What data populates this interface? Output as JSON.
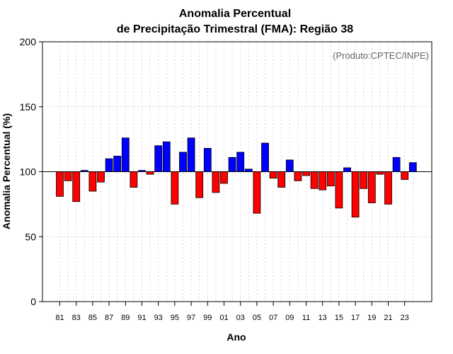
{
  "chart_data": {
    "type": "bar",
    "title_line1": "Anomalia Percentual",
    "title_line2": "de Precipitação Trimestral (FMA): Região 38",
    "xlabel": "Ano",
    "ylabel": "Anomalia Percentual (%)",
    "credit": "(Produto:CPTEC/INPE)",
    "ylim": [
      0,
      200
    ],
    "yticks": [
      0,
      50,
      100,
      150,
      200
    ],
    "baseline": 100,
    "grid": true,
    "colors": {
      "above": "#0000ff",
      "below": "#ff0000",
      "edge": "#000000",
      "grid": "#cccccc"
    },
    "categories": [
      "81",
      "82",
      "83",
      "84",
      "85",
      "86",
      "87",
      "88",
      "89",
      "90",
      "91",
      "92",
      "93",
      "94",
      "95",
      "96",
      "97",
      "98",
      "99",
      "00",
      "01",
      "02",
      "03",
      "04",
      "05",
      "06",
      "07",
      "08",
      "09",
      "10",
      "11",
      "12",
      "13",
      "14",
      "15",
      "16",
      "17",
      "18",
      "19",
      "20",
      "21",
      "22",
      "23",
      "24"
    ],
    "values": [
      81,
      93,
      77,
      101,
      85,
      92,
      110,
      112,
      126,
      88,
      101,
      98,
      120,
      123,
      75,
      115,
      126,
      80,
      118,
      84,
      91,
      111,
      115,
      102,
      68,
      122,
      95,
      88,
      109,
      93,
      97,
      87,
      86,
      89,
      72,
      103,
      65,
      87,
      76,
      98,
      75,
      111,
      94,
      107
    ],
    "xtick_labels": [
      "81",
      "83",
      "85",
      "87",
      "89",
      "91",
      "93",
      "95",
      "97",
      "99",
      "01",
      "03",
      "05",
      "07",
      "09",
      "11",
      "13",
      "15",
      "17",
      "19",
      "21",
      "23"
    ]
  }
}
